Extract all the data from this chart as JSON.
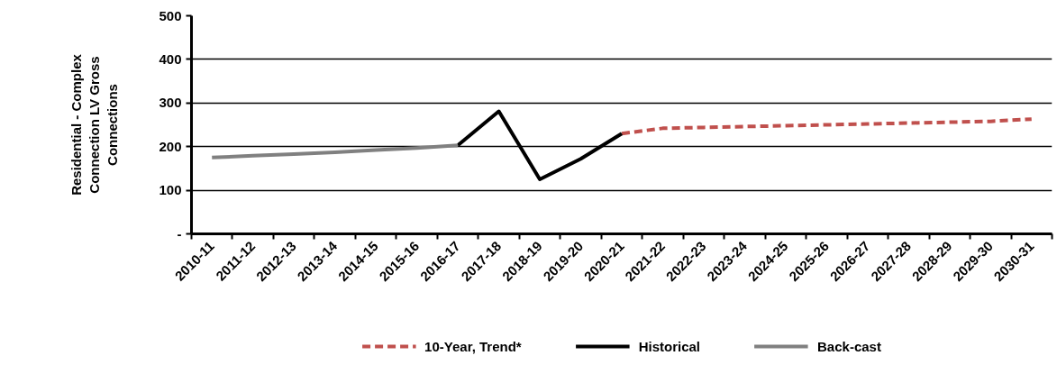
{
  "chart_data": {
    "type": "line",
    "ylabel": "Residential - Complex Connection LV Gross Connections",
    "categories": [
      "2010-11",
      "2011-12",
      "2012-13",
      "2013-14",
      "2014-15",
      "2015-16",
      "2016-17",
      "2017-18",
      "2018-19",
      "2019-20",
      "2020-21",
      "2021-22",
      "2022-23",
      "2023-24",
      "2024-25",
      "2025-26",
      "2026-27",
      "2027-28",
      "2028-29",
      "2029-30",
      "2030-31"
    ],
    "series": [
      {
        "name": "10-Year, Trend*",
        "color": "#c0504d",
        "line_style": "dashed",
        "values": [
          null,
          null,
          null,
          null,
          null,
          null,
          null,
          null,
          null,
          null,
          230,
          242,
          244,
          246,
          248,
          250,
          252,
          254,
          256,
          258,
          263
        ]
      },
      {
        "name": "Historical",
        "color": "#000000",
        "line_style": "solid",
        "values": [
          null,
          null,
          null,
          null,
          null,
          null,
          203,
          281,
          125,
          172,
          230,
          null,
          null,
          null,
          null,
          null,
          null,
          null,
          null,
          null,
          null
        ]
      },
      {
        "name": "Back-cast",
        "color": "#808080",
        "line_style": "solid",
        "values": [
          175,
          179,
          183,
          187,
          192,
          197,
          203,
          null,
          null,
          null,
          null,
          null,
          null,
          null,
          null,
          null,
          null,
          null,
          null,
          null,
          null
        ]
      }
    ],
    "ylim": [
      0,
      500
    ],
    "yticks": [
      {
        "value": 0,
        "label": "-"
      },
      100,
      200,
      300,
      400,
      500
    ],
    "grid": "y",
    "legend": "bottom"
  }
}
